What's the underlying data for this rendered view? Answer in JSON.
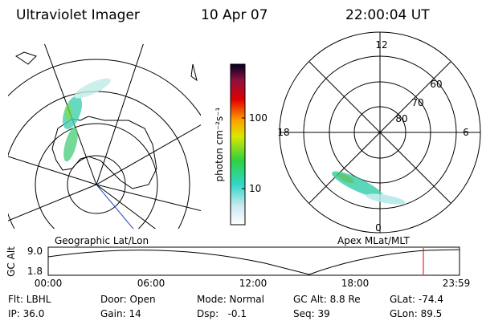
{
  "header": {
    "title": "Ultraviolet Imager",
    "date": "10 Apr 07",
    "time": "22:00:04 UT"
  },
  "left_panel": {
    "caption": "Geographic Lat/Lon"
  },
  "colorbar": {
    "label": "photon cm⁻²s⁻¹",
    "ticks": [
      "100",
      "10"
    ]
  },
  "right_panel": {
    "caption": "Apex MLat/MLT",
    "mlt_labels": [
      "12",
      "18",
      "6",
      "0"
    ],
    "lat_labels": [
      "60",
      "70",
      "80"
    ]
  },
  "altitude_plot": {
    "label": "GC Alt",
    "y_labels": [
      "9.0",
      "1.8"
    ],
    "time_labels": [
      "00:00",
      "06:00",
      "12:00",
      "18:00",
      "23:59"
    ]
  },
  "info": {
    "row1": [
      "Flt: LBHL",
      "Door: Open",
      "Mode: Normal",
      "GC Alt: 8.8 Re",
      "GLat: -74.4"
    ],
    "row2": [
      "IP: 36.0",
      "Gain: 14",
      "Dsp:   -0.1",
      "Seq: 39",
      "GLon: 89.5"
    ]
  }
}
